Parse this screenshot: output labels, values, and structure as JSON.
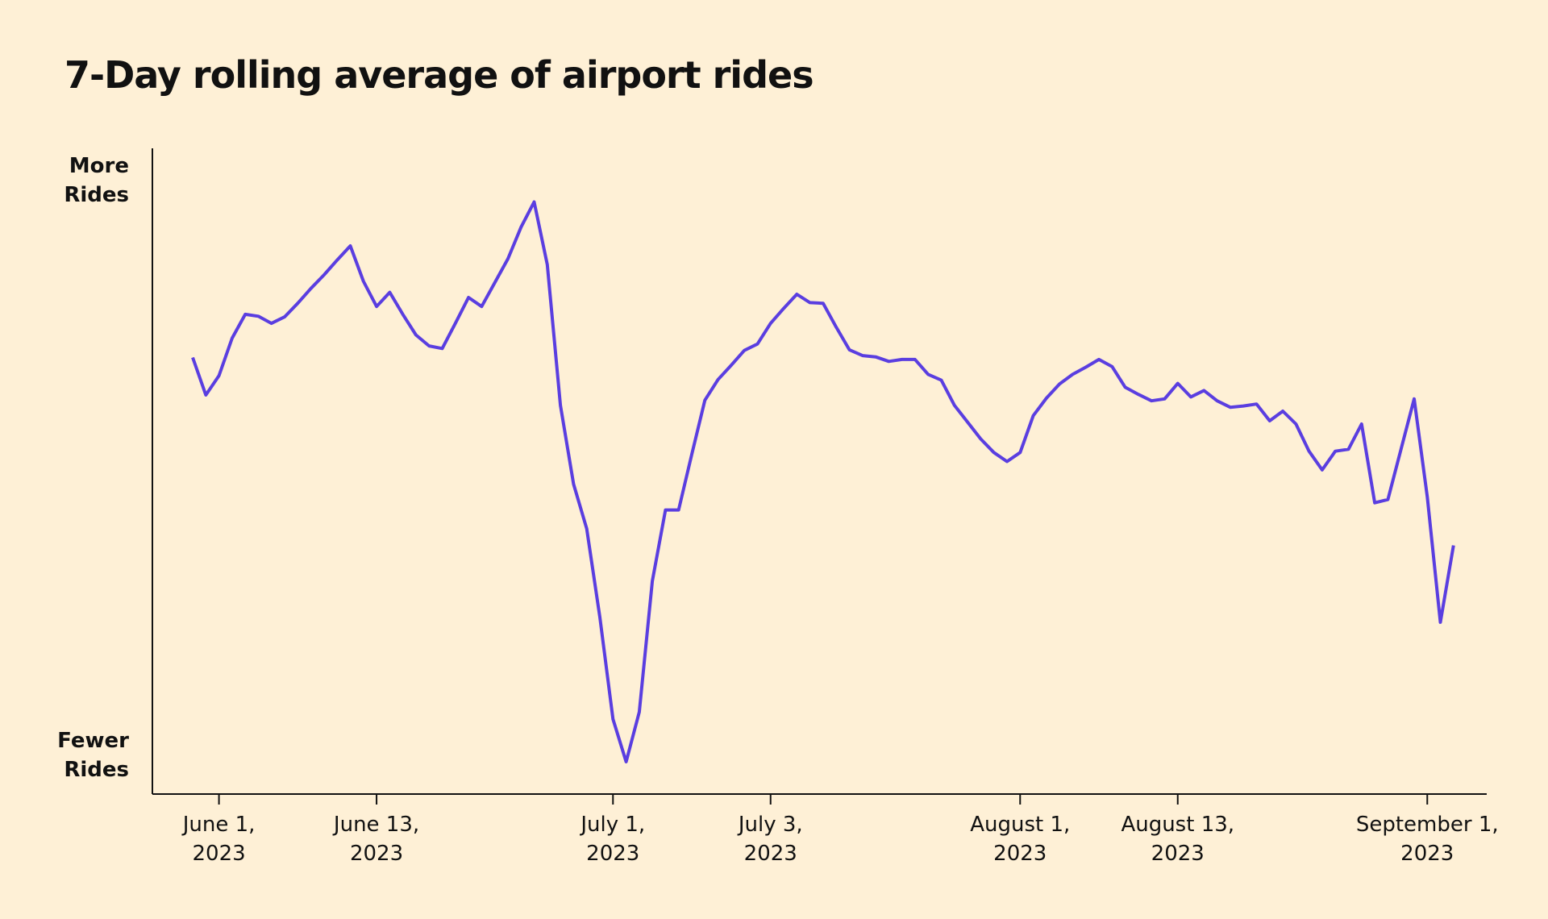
{
  "chart_data": {
    "type": "line",
    "title": "7-Day rolling average of airport rides",
    "categories": [
      null,
      null,
      "June 1,\n2023",
      null,
      null,
      null,
      null,
      null,
      null,
      null,
      null,
      null,
      null,
      null,
      "June 13,\n2023",
      null,
      null,
      null,
      null,
      null,
      null,
      null,
      null,
      null,
      null,
      null,
      null,
      null,
      null,
      null,
      null,
      null,
      "July 1,\n2023",
      null,
      null,
      null,
      null,
      null,
      null,
      null,
      null,
      null,
      null,
      null,
      "July 3,\n2023",
      null,
      null,
      null,
      null,
      null,
      null,
      null,
      null,
      null,
      null,
      null,
      null,
      null,
      null,
      null,
      null,
      null,
      null,
      "August 1,\n2023",
      null,
      null,
      null,
      null,
      null,
      null,
      null,
      null,
      null,
      null,
      null,
      "August 13,\n2023",
      null,
      null,
      null,
      null,
      null,
      null,
      null,
      null,
      null,
      null,
      null,
      null,
      null,
      null,
      null,
      null,
      null,
      null,
      "September 1,\n2023",
      null,
      null
    ],
    "series": [
      {
        "name": "7-Day rolling average of airport rides",
        "color": "#5a3ee0",
        "values": [
          67.6,
          61.8,
          64.8,
          70.6,
          74.3,
          74.0,
          72.9,
          73.9,
          76.0,
          78.3,
          80.4,
          82.7,
          84.9,
          79.4,
          75.5,
          77.7,
          74.3,
          71.1,
          69.4,
          69.0,
          72.9,
          76.9,
          75.5,
          79.2,
          82.9,
          87.8,
          91.7,
          82.0,
          60.2,
          48.0,
          41.1,
          27.4,
          11.6,
          5.0,
          12.7,
          33.0,
          44.0,
          44.0,
          52.6,
          61.0,
          64.2,
          66.4,
          68.7,
          69.7,
          72.9,
          75.2,
          77.4,
          76.1,
          76.0,
          72.3,
          68.8,
          67.9,
          67.7,
          67.0,
          67.3,
          67.3,
          65.0,
          64.1,
          60.2,
          57.6,
          55.0,
          52.9,
          51.5,
          52.9,
          58.6,
          61.3,
          63.5,
          65.0,
          66.1,
          67.3,
          66.2,
          63.0,
          61.9,
          60.9,
          61.2,
          63.6,
          61.5,
          62.5,
          60.9,
          59.9,
          60.1,
          60.4,
          57.8,
          59.3,
          57.3,
          53.1,
          50.2,
          53.1,
          53.4,
          57.3,
          45.1,
          45.6,
          53.4,
          61.2,
          46.0,
          26.6,
          38.5
        ]
      }
    ],
    "ylim": [
      0,
      100
    ],
    "yticks": [
      {
        "value": 95,
        "label": "More\nRides"
      },
      {
        "value": 6,
        "label": "Fewer\nRides"
      }
    ]
  }
}
